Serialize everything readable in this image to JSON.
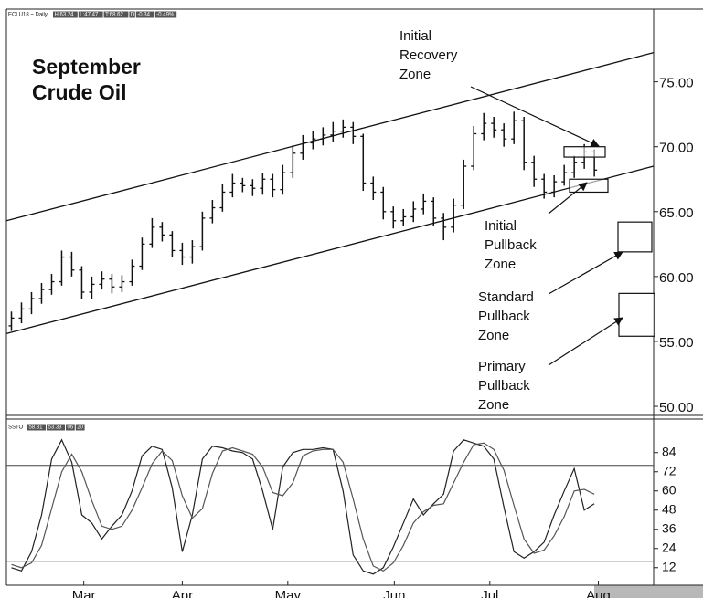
{
  "chart_data": {
    "type": "ohlc",
    "title": [
      "September",
      "Crude Oil"
    ],
    "header": {
      "symbol": "ECLU18 ~ Daily",
      "boxes": [
        "H:63.24",
        "L:47.47",
        "T:68.62",
        "D",
        "-0.34",
        "-0.49%"
      ]
    },
    "xlim": [
      -0.5,
      63.9
    ],
    "xticks": [
      {
        "value": 7.2,
        "label": "Mar"
      },
      {
        "value": 17.0,
        "label": "Apr"
      },
      {
        "value": 27.5,
        "label": "May"
      },
      {
        "value": 38.1,
        "label": "Jun"
      },
      {
        "value": 47.6,
        "label": "Jul"
      },
      {
        "value": 58.4,
        "label": "Aug"
      }
    ],
    "ylim": [
      49.3,
      80.6
    ],
    "yticks": [
      {
        "value": 75,
        "label": "75.00"
      },
      {
        "value": 70,
        "label": "70.00"
      },
      {
        "value": 65,
        "label": "65.00"
      },
      {
        "value": 60,
        "label": "60.00"
      },
      {
        "value": 55,
        "label": "55.00"
      },
      {
        "value": 50,
        "label": "50.00"
      }
    ],
    "color": "#111111",
    "open": [
      56.2,
      56.8,
      57.5,
      58.3,
      59.0,
      59.6,
      61.5,
      60.5,
      58.8,
      59.4,
      59.8,
      59.2,
      59.6,
      60.8,
      62.5,
      63.8,
      63.2,
      62.0,
      61.5,
      62.3,
      64.5,
      65.3,
      66.5,
      67.2,
      67.0,
      66.8,
      67.5,
      66.7,
      68.0,
      69.5,
      70.3,
      70.6,
      70.9,
      71.2,
      71.5,
      70.8,
      67.2,
      66.5,
      65.0,
      64.3,
      64.6,
      65.2,
      65.8,
      64.5,
      63.8,
      65.5,
      68.5,
      71.0,
      71.8,
      71.3,
      70.6,
      72.0,
      68.8,
      67.5,
      66.5,
      67.3,
      68.0,
      68.8,
      69.6
    ],
    "high": [
      57.3,
      58.0,
      58.8,
      59.5,
      60.2,
      62.0,
      61.9,
      60.8,
      60.0,
      60.4,
      60.2,
      60.1,
      61.3,
      63.0,
      64.5,
      64.2,
      63.5,
      62.6,
      62.8,
      65.0,
      65.9,
      67.1,
      67.9,
      67.6,
      67.5,
      68.0,
      67.9,
      68.6,
      70.1,
      70.9,
      71.2,
      71.5,
      71.9,
      72.1,
      71.9,
      71.0,
      67.7,
      66.9,
      65.4,
      65.2,
      65.8,
      66.4,
      66.1,
      64.9,
      66.0,
      69.0,
      71.6,
      72.6,
      72.3,
      71.8,
      72.7,
      72.3,
      69.3,
      67.9,
      67.8,
      68.6,
      69.3,
      70.2,
      69.8
    ],
    "low": [
      55.8,
      56.4,
      57.1,
      57.9,
      58.6,
      59.3,
      60.0,
      58.3,
      58.3,
      59.0,
      58.7,
      58.8,
      59.3,
      60.5,
      62.2,
      62.7,
      61.5,
      60.9,
      61.0,
      62.0,
      64.1,
      65.0,
      66.1,
      66.5,
      66.2,
      66.3,
      66.1,
      66.3,
      67.6,
      69.0,
      69.8,
      70.1,
      70.4,
      70.7,
      70.2,
      66.6,
      65.9,
      64.4,
      63.7,
      63.9,
      64.2,
      64.8,
      63.9,
      62.8,
      63.4,
      65.2,
      68.2,
      70.5,
      70.7,
      70.0,
      70.2,
      68.2,
      66.9,
      66.0,
      66.1,
      67.0,
      67.6,
      68.3,
      67.7
    ],
    "close": [
      56.8,
      57.5,
      58.3,
      59.0,
      59.6,
      61.5,
      60.5,
      58.8,
      59.4,
      59.8,
      59.2,
      59.6,
      60.8,
      62.5,
      63.8,
      63.2,
      62.0,
      61.5,
      62.3,
      64.5,
      65.3,
      66.5,
      67.2,
      67.0,
      66.8,
      67.5,
      66.7,
      68.0,
      69.5,
      70.3,
      70.6,
      70.9,
      71.2,
      71.5,
      70.8,
      67.2,
      66.5,
      65.0,
      64.3,
      64.6,
      65.2,
      65.8,
      64.5,
      63.8,
      65.5,
      68.5,
      71.0,
      71.8,
      71.3,
      70.6,
      72.0,
      68.8,
      67.5,
      66.5,
      67.3,
      68.0,
      68.8,
      69.6,
      68.2
    ],
    "channel": [
      {
        "x": [
          -0.5,
          63.9
        ],
        "y": [
          64.3,
          77.25
        ]
      },
      {
        "x": [
          -0.5,
          63.9
        ],
        "y": [
          55.6,
          68.5
        ]
      }
    ],
    "zones": [
      {
        "label": [
          "Initial",
          "Recovery",
          "Zone"
        ],
        "high": 70.0,
        "low": 69.2
      },
      {
        "label": [
          "Initial",
          "Pullback",
          "Zone"
        ],
        "high": 67.5,
        "low": 66.5
      },
      {
        "label": [
          "Standard",
          "Pullback",
          "Zone"
        ],
        "high": 64.2,
        "low": 61.9
      },
      {
        "label": [
          "Primary",
          "Pullback",
          "Zone"
        ],
        "high": 58.7,
        "low": 55.4
      }
    ],
    "stochastic": {
      "header": {
        "name": "SSTO",
        "boxes": [
          "58.81",
          "53.33",
          "06",
          "20"
        ]
      },
      "ylim": [
        1,
        105
      ],
      "yticks": [
        84,
        72,
        60,
        48,
        36,
        24,
        12
      ],
      "levels": [
        76,
        16
      ],
      "series": [
        {
          "name": "%K",
          "color": "#222222",
          "values": [
            12,
            10,
            22,
            45,
            80,
            92,
            78,
            45,
            40,
            30,
            38,
            45,
            60,
            82,
            88,
            86,
            62,
            22,
            45,
            80,
            88,
            87,
            85,
            84,
            80,
            60,
            36,
            75,
            84,
            86,
            86,
            87,
            86,
            60,
            20,
            10,
            8,
            12,
            25,
            40,
            55,
            45,
            52,
            58,
            85,
            92,
            90,
            88,
            80,
            50,
            22,
            18,
            22,
            28,
            45,
            60,
            74,
            48,
            52
          ]
        },
        {
          "name": "%D",
          "color": "#555555",
          "values": [
            14,
            12,
            15,
            26,
            49,
            72,
            83,
            72,
            54,
            38,
            36,
            38,
            48,
            62,
            77,
            85,
            79,
            57,
            43,
            49,
            71,
            85,
            87,
            85,
            83,
            75,
            59,
            57,
            65,
            82,
            85,
            86,
            86,
            78,
            55,
            30,
            13,
            10,
            15,
            26,
            40,
            47,
            51,
            52,
            65,
            78,
            89,
            90,
            86,
            73,
            51,
            30,
            21,
            23,
            32,
            44,
            60,
            61,
            58
          ]
        }
      ]
    }
  }
}
